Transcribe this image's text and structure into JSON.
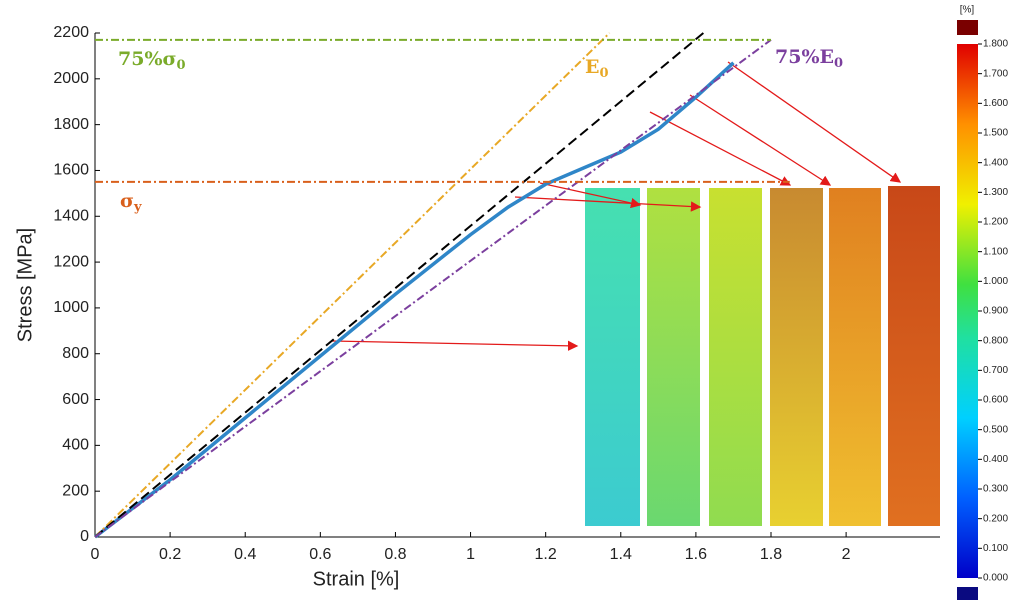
{
  "chart_data": {
    "type": "line",
    "xlabel": "Strain [%]",
    "ylabel": "Stress [MPa]",
    "xlim": [
      0,
      2.25
    ],
    "ylim": [
      0,
      2200
    ],
    "xticks": [
      0,
      0.2,
      0.4,
      0.6,
      0.8,
      1,
      1.2,
      1.4,
      1.6,
      1.8,
      2
    ],
    "yticks": [
      0,
      200,
      400,
      600,
      800,
      1000,
      1200,
      1400,
      1600,
      1800,
      2000,
      2200
    ],
    "series": [
      {
        "color": "#2f86c8",
        "style": "solid",
        "x": [
          0,
          0.2,
          0.4,
          0.6,
          0.8,
          1.0,
          1.1,
          1.2,
          1.3,
          1.4,
          1.5,
          1.6,
          1.7
        ],
        "values": [
          0,
          250,
          520,
          790,
          1060,
          1320,
          1440,
          1540,
          1610,
          1680,
          1780,
          1920,
          2070
        ]
      },
      {
        "color": "#e8a825",
        "style": "dashdot",
        "x": [
          0,
          1.37
        ],
        "values": [
          0,
          2200
        ]
      },
      {
        "color": "#000000",
        "style": "dashed",
        "x": [
          0,
          1.62
        ],
        "values": [
          0,
          2200
        ]
      },
      {
        "color": "#7b3f9e",
        "style": "dashdot",
        "x": [
          0,
          1.8
        ],
        "values": [
          0,
          2170
        ]
      },
      {
        "color": "#7aab2a",
        "style": "dashdot",
        "x": [
          0,
          1.8
        ],
        "values": [
          2170,
          2170
        ]
      },
      {
        "color": "#d9601c",
        "style": "dashdot",
        "x": [
          0,
          1.85
        ],
        "values": [
          1550,
          1550
        ]
      }
    ],
    "annotations": [
      {
        "text": "75%σ",
        "sub": "0",
        "color": "#7aab2a"
      },
      {
        "text": "E",
        "sub": "0",
        "color": "#e8a825"
      },
      {
        "text": "75%E",
        "sub": "0",
        "color": "#7b3f9e"
      },
      {
        "text": "σ",
        "sub": "y",
        "color": "#d9601c"
      }
    ],
    "colorbar": {
      "title": "[%]",
      "lim": [
        0,
        1.8
      ],
      "ticks": [
        {
          "value": 0,
          "label": "0.000"
        },
        {
          "value": 0.1,
          "label": "0.100"
        },
        {
          "value": 0.2,
          "label": "0.200"
        },
        {
          "value": 0.3,
          "label": "0.300"
        },
        {
          "value": 0.4,
          "label": "0.400"
        },
        {
          "value": 0.5,
          "label": "0.500"
        },
        {
          "value": 0.6,
          "label": "0.600"
        },
        {
          "value": 0.7,
          "label": "0.700"
        },
        {
          "value": 0.8,
          "label": "0.800"
        },
        {
          "value": 0.9,
          "label": "0.900"
        },
        {
          "value": 1.0,
          "label": "1.000"
        },
        {
          "value": 1.1,
          "label": "1.100"
        },
        {
          "value": 1.2,
          "label": "1.200"
        },
        {
          "value": 1.3,
          "label": "1.300"
        },
        {
          "value": 1.4,
          "label": "1.400"
        },
        {
          "value": 1.5,
          "label": "1.500"
        },
        {
          "value": 1.6,
          "label": "1.600"
        },
        {
          "value": 1.7,
          "label": "1.700"
        },
        {
          "value": 1.8,
          "label": "1.800"
        }
      ]
    }
  }
}
